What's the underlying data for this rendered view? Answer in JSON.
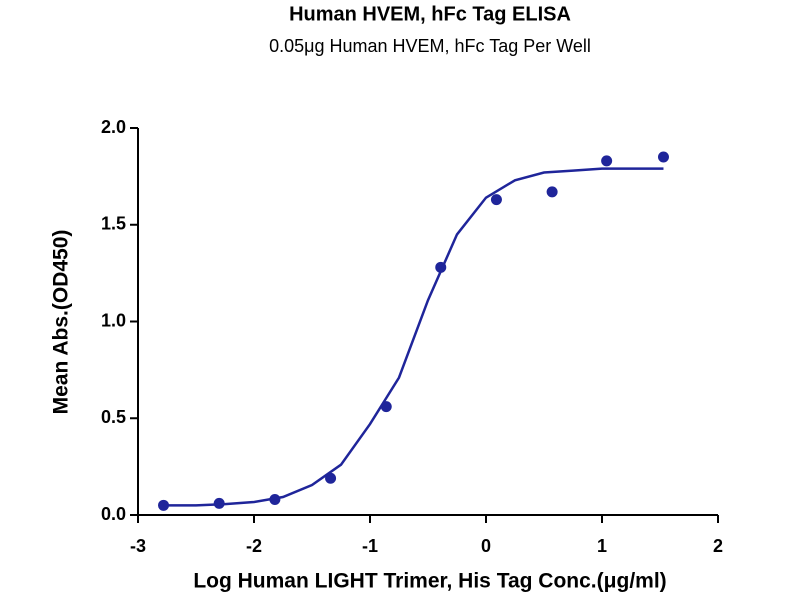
{
  "chart_data": {
    "type": "scatter",
    "title": "Human HVEM, hFc Tag ELISA",
    "subtitle": "0.05μg  Human HVEM, hFc Tag Per Well",
    "x_label": "Log Human LIGHT Trimer, His Tag Conc.(μg/ml)",
    "y_label": "Mean Abs.(OD450)",
    "xlim": [
      -3,
      2
    ],
    "ylim": [
      0,
      2
    ],
    "xticks": [
      -3,
      -2,
      -1,
      0,
      1,
      2
    ],
    "yticks": [
      {
        "value": 0,
        "label": "0.0"
      },
      0.5,
      {
        "value": 1,
        "label": "1.0"
      },
      1.5,
      {
        "value": 2,
        "label": "2.0"
      }
    ],
    "series": [
      {
        "type": "scatter",
        "color": "#1f259a",
        "x": [
          -2.78,
          -2.3,
          -1.82,
          -1.34,
          -0.86,
          -0.39,
          0.09,
          0.57,
          1.04,
          1.53
        ],
        "values": [
          0.05,
          0.06,
          0.08,
          0.19,
          0.56,
          1.28,
          1.63,
          1.67,
          1.83,
          1.85
        ]
      },
      {
        "type": "line",
        "color": "#1f259a",
        "x": [
          -2.78,
          -2.5,
          -2.25,
          -2,
          -1.75,
          -1.5,
          -1.25,
          -1,
          -0.75,
          -0.5,
          -0.25,
          0,
          0.25,
          0.5,
          0.75,
          1,
          1.53
        ],
        "values": [
          0.05,
          0.05,
          0.056,
          0.067,
          0.093,
          0.155,
          0.26,
          0.47,
          0.71,
          1.11,
          1.45,
          1.64,
          1.73,
          1.77,
          1.78,
          1.79,
          1.79
        ]
      }
    ]
  }
}
